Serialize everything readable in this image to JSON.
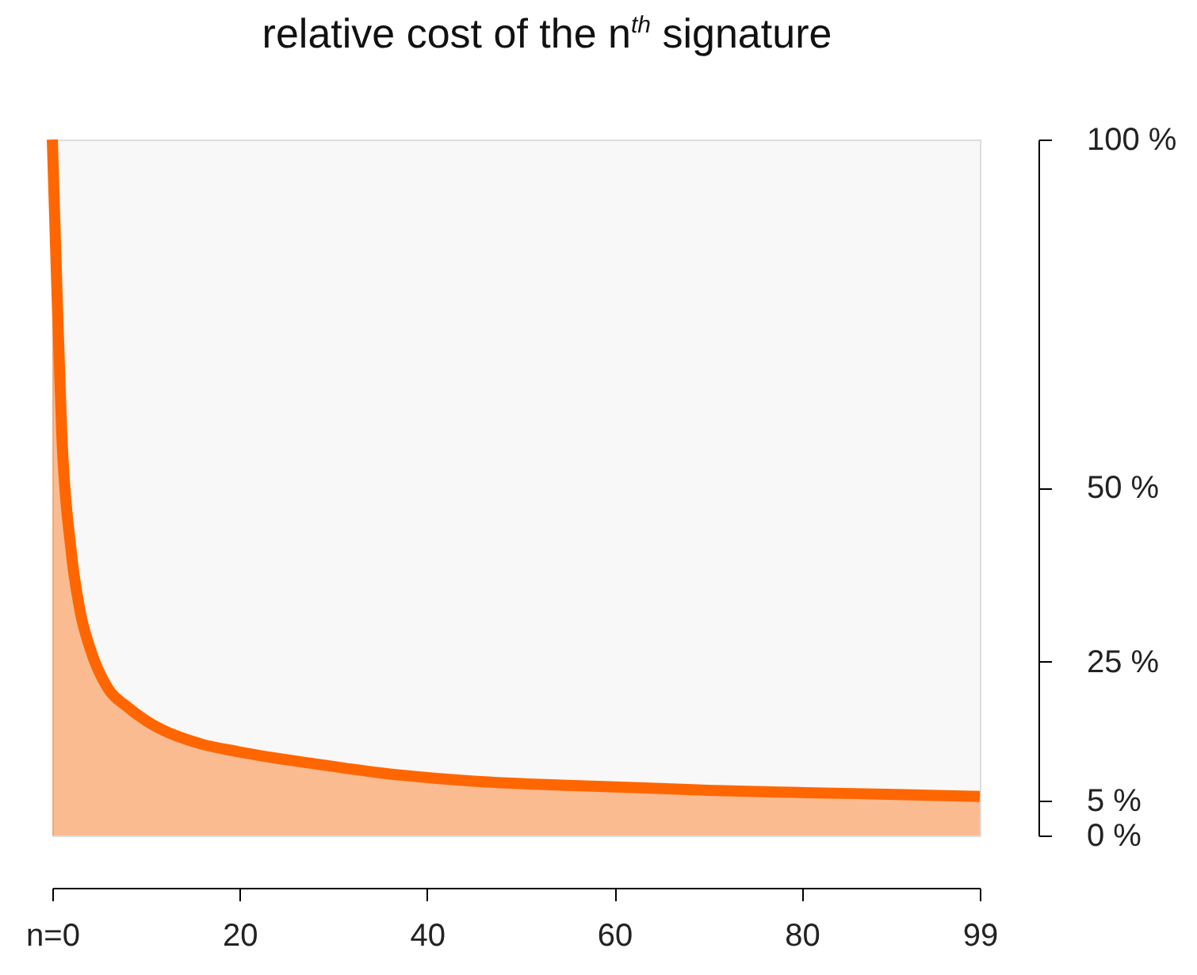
{
  "chart_data": {
    "type": "area",
    "title": "relative cost of the n$^{th}$ signature",
    "x": [
      0,
      0.5,
      1,
      2,
      3,
      4,
      6,
      8,
      10,
      15,
      20,
      28,
      35,
      45,
      55,
      62,
      70,
      79,
      90,
      99
    ],
    "series": [
      {
        "color": "#ff6600",
        "values": [
          100,
          78,
          58,
          41,
          32,
          27,
          21,
          18.5,
          16.5,
          13.5,
          12,
          10.3,
          9,
          7.8,
          7.2,
          6.9,
          6.5,
          6.2,
          5.9,
          5.6
        ]
      }
    ],
    "xlim": [
      0,
      99
    ],
    "xticks": [
      {
        "value": 0,
        "label": "n=0"
      },
      20,
      40,
      60,
      80,
      99
    ],
    "ylim": [
      0,
      100
    ],
    "yticks": [
      {
        "value": 0,
        "label": "0 %"
      },
      {
        "value": 5,
        "label": "5 %"
      },
      {
        "value": 25,
        "label": "25 %"
      },
      {
        "value": 50,
        "label": "50 %"
      },
      {
        "value": 100,
        "label": "100 %"
      }
    ],
    "line_style": "solid"
  }
}
